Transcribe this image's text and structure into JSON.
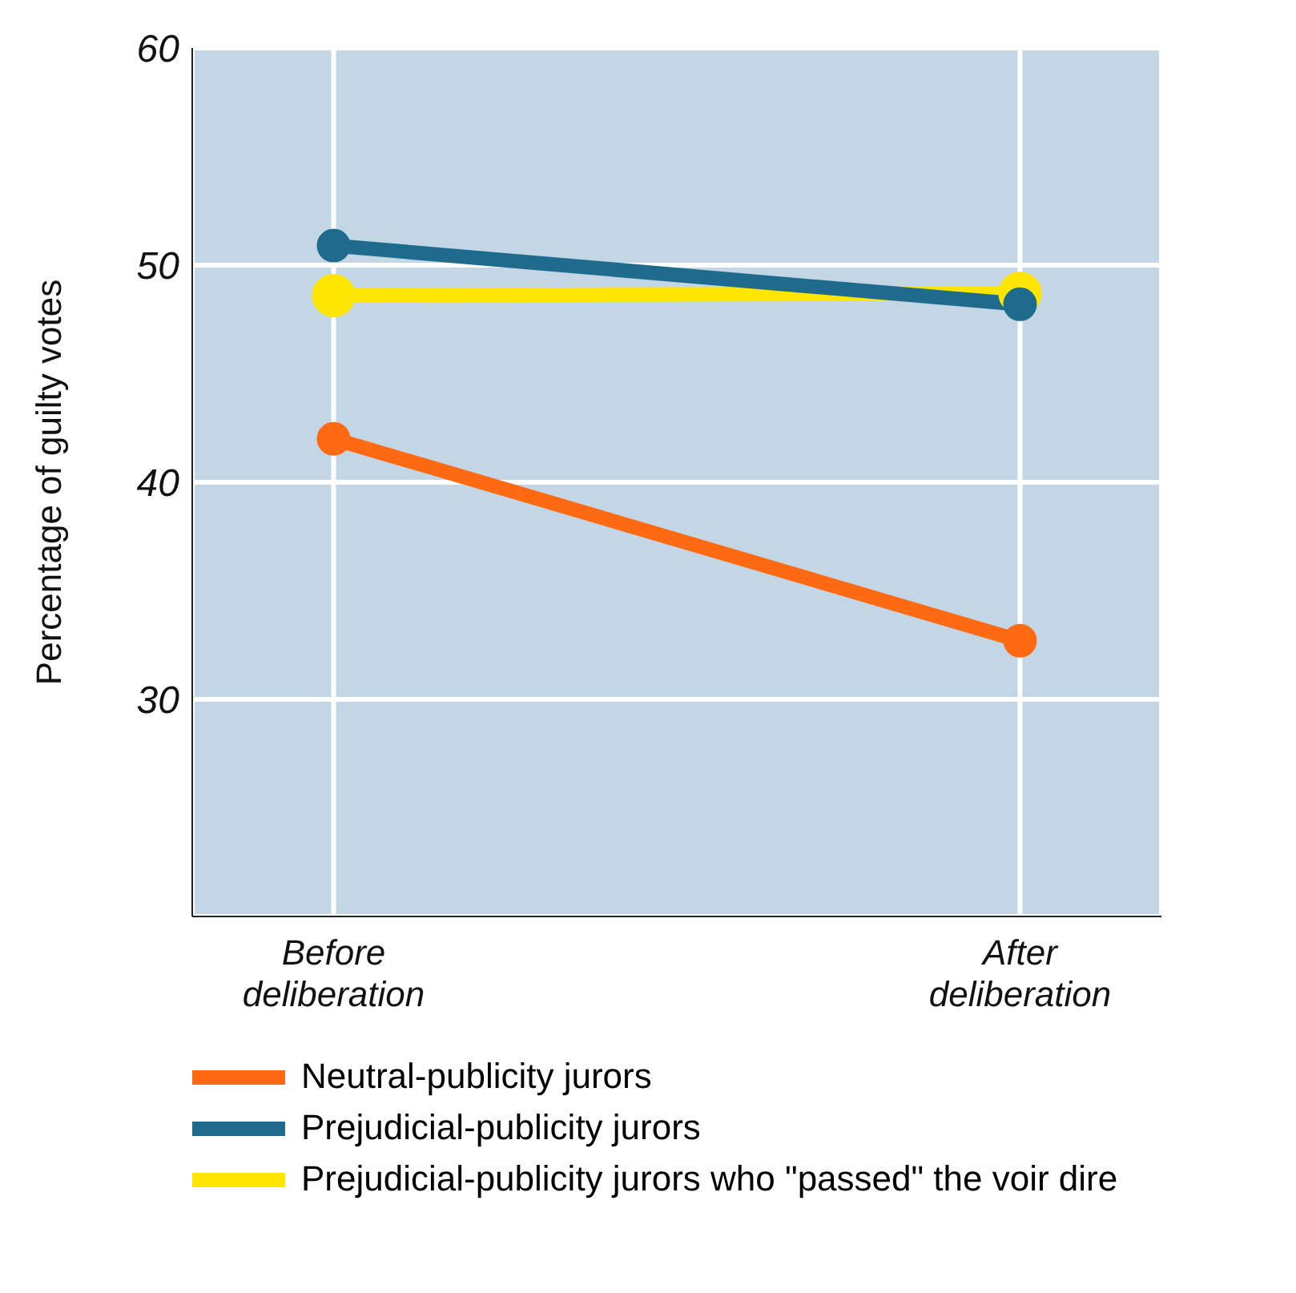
{
  "chart_data": {
    "type": "line",
    "ylabel": "Percentage of guilty votes",
    "categories": [
      "Before deliberation",
      "After deliberation"
    ],
    "ylim": [
      20,
      60
    ],
    "yticks": [
      30,
      40,
      50,
      60
    ],
    "grid": true,
    "legend": "bottom",
    "marker": "circle",
    "line_style": "solid",
    "series": [
      {
        "name": "Neutral-publicity jurors",
        "color": "#ff6a13",
        "values": [
          42.0,
          32.7
        ]
      },
      {
        "name": "Prejudicial-publicity jurors",
        "color": "#1f6b8e",
        "values": [
          50.9,
          48.2
        ]
      },
      {
        "name": "Prejudicial-publicity jurors who \"passed\" the voir dire",
        "color": "#ffe500",
        "values": [
          48.6,
          48.7
        ]
      }
    ]
  }
}
